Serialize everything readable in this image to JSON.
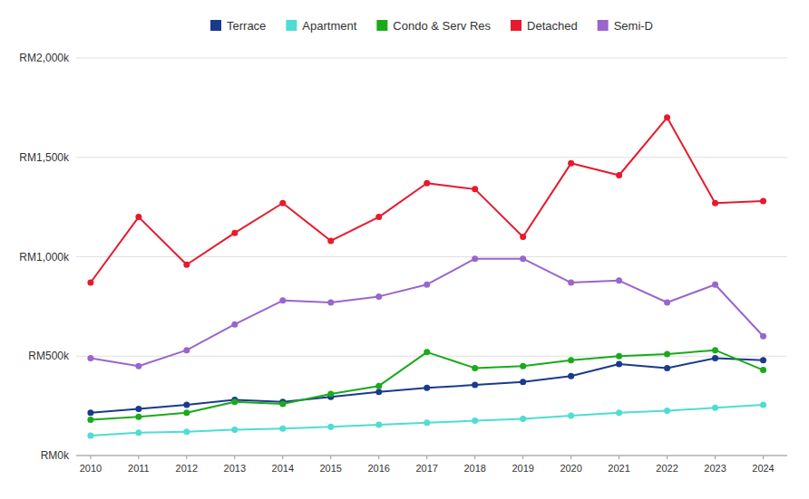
{
  "chart_data": {
    "type": "line",
    "x": [
      2010,
      2011,
      2012,
      2013,
      2014,
      2015,
      2016,
      2017,
      2018,
      2019,
      2020,
      2021,
      2022,
      2023,
      2024
    ],
    "series": [
      {
        "name": "Terrace",
        "color": "#1a3a8c",
        "marker": "circle",
        "values": [
          215000,
          235000,
          255000,
          280000,
          270000,
          295000,
          320000,
          340000,
          355000,
          370000,
          400000,
          460000,
          440000,
          490000,
          480000
        ]
      },
      {
        "name": "Apartment",
        "color": "#4dddd4",
        "marker": "circle",
        "values": [
          100000,
          115000,
          120000,
          130000,
          135000,
          145000,
          155000,
          165000,
          175000,
          185000,
          200000,
          215000,
          225000,
          240000,
          255000
        ]
      },
      {
        "name": "Condo & Serv Res",
        "color": "#1aaa1a",
        "marker": "circle",
        "values": [
          180000,
          195000,
          215000,
          270000,
          260000,
          310000,
          350000,
          520000,
          440000,
          450000,
          480000,
          500000,
          510000,
          530000,
          430000
        ]
      },
      {
        "name": "Detached",
        "color": "#e8192c",
        "marker": "circle",
        "values": [
          870000,
          1200000,
          960000,
          1120000,
          1270000,
          1080000,
          1200000,
          1370000,
          1340000,
          1100000,
          1470000,
          1410000,
          1700000,
          1270000,
          1280000
        ]
      },
      {
        "name": "Semi-D",
        "color": "#9966cc",
        "marker": "circle",
        "values": [
          490000,
          450000,
          530000,
          660000,
          780000,
          770000,
          800000,
          860000,
          990000,
          990000,
          870000,
          880000,
          770000,
          860000,
          600000
        ]
      }
    ],
    "xlim": [
      2009.7,
      2024.5
    ],
    "xticks": [
      2010,
      2011,
      2012,
      2013,
      2014,
      2015,
      2016,
      2017,
      2018,
      2019,
      2020,
      2021,
      2022,
      2023,
      2024
    ],
    "ylim": [
      0,
      2000000
    ],
    "yticks": [
      {
        "value": 0,
        "label": "RM0k"
      },
      {
        "value": 500000,
        "label": "RM500k"
      },
      {
        "value": 1000000,
        "label": "RM1,000k"
      },
      {
        "value": 1500000,
        "label": "RM1,500k"
      },
      {
        "value": 2000000,
        "label": "RM2,000k"
      }
    ],
    "grid": "y",
    "legend": "top"
  }
}
